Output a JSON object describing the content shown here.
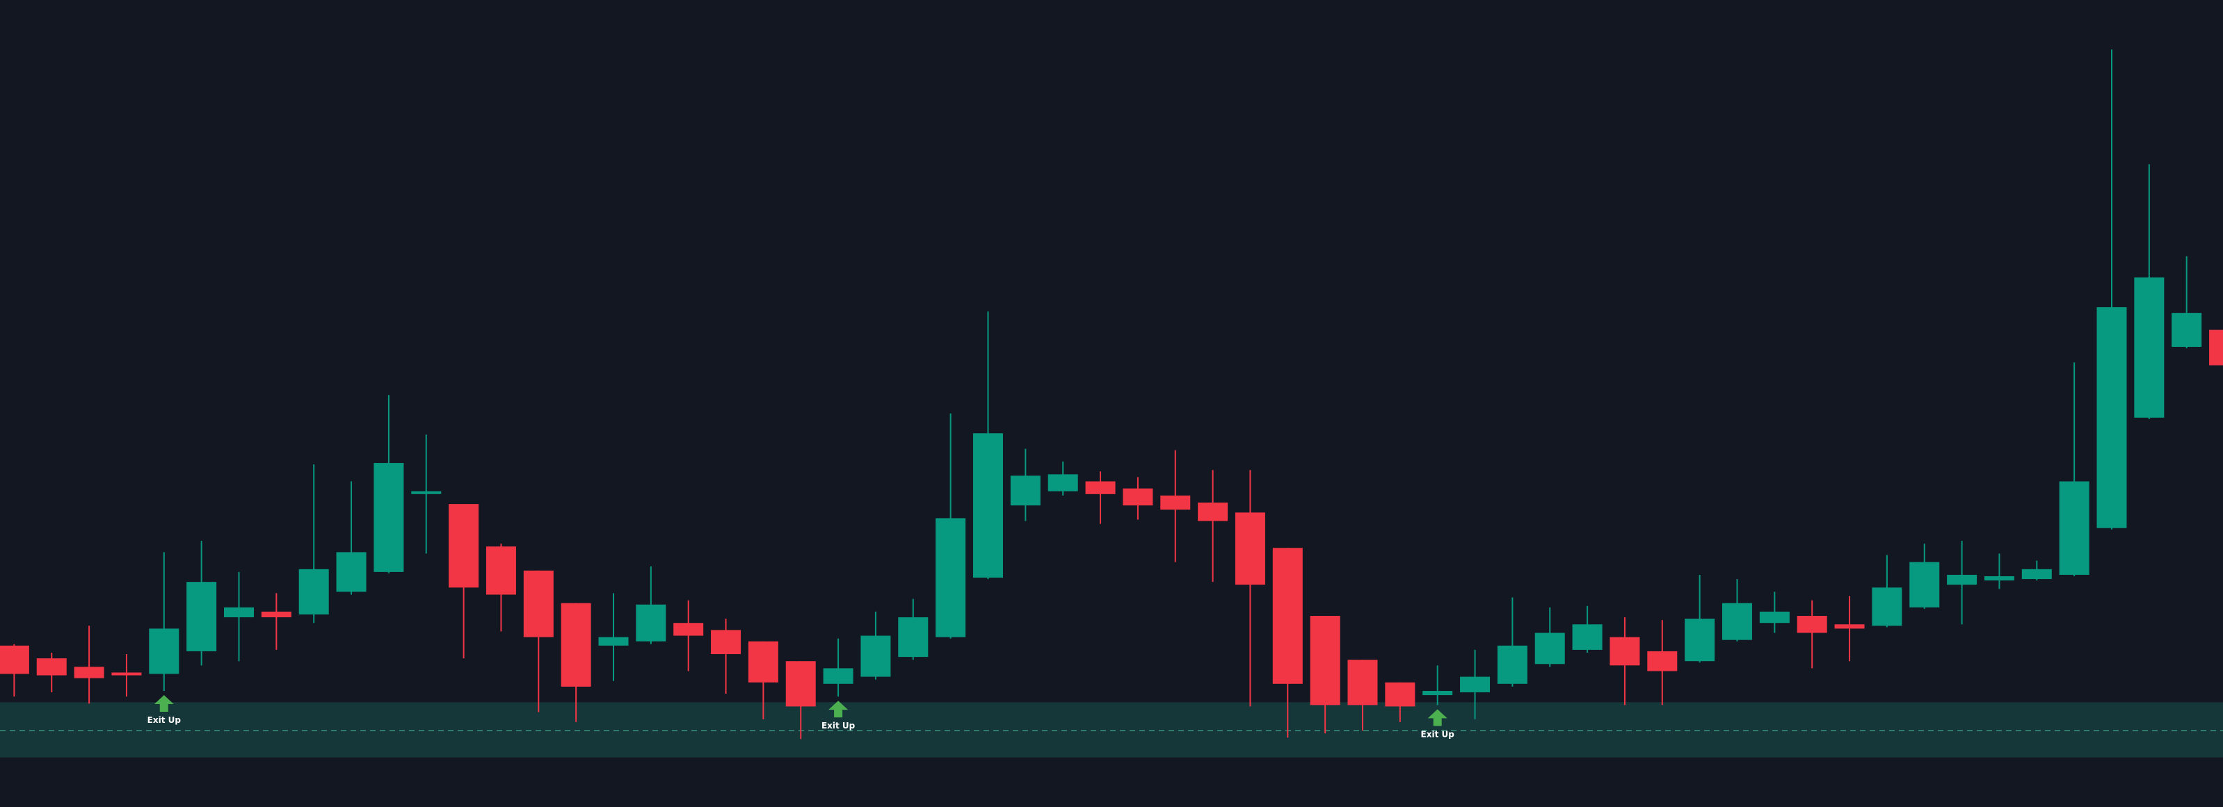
{
  "chart_data": {
    "type": "candlestick",
    "ylim": [
      0,
      570
    ],
    "up_color": "#089981",
    "down_color": "#f23645",
    "open": [
      114,
      105,
      99,
      95,
      94,
      110,
      134,
      138,
      136,
      152,
      166,
      223,
      214,
      184,
      167,
      144,
      114,
      117,
      130,
      125,
      117,
      103,
      87,
      92,
      106,
      120,
      162,
      213,
      223,
      230,
      225,
      220,
      215,
      208,
      183,
      135,
      104,
      88,
      79,
      81,
      87,
      101,
      111,
      120,
      110,
      103,
      118,
      130,
      135,
      129,
      128,
      141,
      157,
      160,
      161,
      164,
      197,
      275,
      325,
      337
    ],
    "high": [
      115,
      109,
      128,
      108,
      180,
      188,
      166,
      151,
      242,
      230,
      291,
      263,
      214,
      186,
      167,
      144,
      151,
      170,
      146,
      133,
      117,
      103,
      119,
      138,
      147,
      278,
      350,
      253,
      244,
      237,
      233,
      252,
      238,
      238,
      183,
      135,
      104,
      88,
      100,
      111,
      148,
      141,
      142,
      134,
      132,
      164,
      161,
      152,
      146,
      149,
      178,
      186,
      188,
      179,
      174,
      314,
      535,
      454,
      389,
      352
    ],
    "low": [
      78,
      81,
      73,
      78,
      82,
      100,
      103,
      111,
      130,
      150,
      165,
      179,
      105,
      124,
      67,
      60,
      89,
      115,
      96,
      80,
      62,
      48,
      78,
      90,
      104,
      119,
      161,
      202,
      220,
      200,
      203,
      173,
      159,
      71,
      49,
      52,
      54,
      60,
      72,
      62,
      85,
      99,
      109,
      72,
      72,
      102,
      117,
      123,
      98,
      103,
      127,
      140,
      129,
      154,
      160,
      163,
      196,
      274,
      324,
      252
    ],
    "close": [
      94,
      93,
      91,
      93,
      126,
      159,
      141,
      134,
      168,
      180,
      243,
      223,
      155,
      150,
      120,
      85,
      120,
      143,
      121,
      108,
      88,
      71,
      98,
      121,
      134,
      204,
      264,
      234,
      235,
      221,
      213,
      210,
      202,
      157,
      87,
      72,
      72,
      71,
      82,
      92,
      114,
      123,
      129,
      100,
      96,
      133,
      144,
      138,
      123,
      126,
      155,
      173,
      164,
      163,
      168,
      230,
      353,
      374,
      349,
      312
    ],
    "zone": {
      "top": 74,
      "bottom": 35,
      "line": 54
    },
    "markers": [
      {
        "index": 4,
        "text": "Exit Up"
      },
      {
        "index": 22,
        "text": "Exit Up"
      },
      {
        "index": 38,
        "text": "Exit Up"
      }
    ]
  }
}
